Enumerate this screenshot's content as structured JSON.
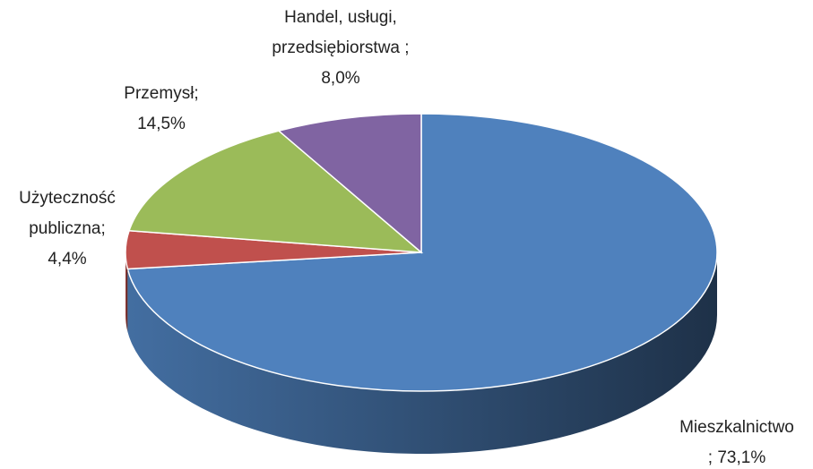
{
  "chart_data": {
    "type": "pie3d",
    "categories": [
      "Mieszkalnictwo",
      "Użyteczność publiczna",
      "Przemysł",
      "Handel, usługi, przedsiębiorstwa"
    ],
    "values": [
      73.1,
      4.4,
      14.5,
      8.0
    ],
    "value_labels": [
      "73,1%",
      "4,4%",
      "14,5%",
      "8,0%"
    ],
    "separator": ";",
    "colors": [
      "#4f81bd",
      "#c0504d",
      "#9bbb59",
      "#8064a2"
    ]
  }
}
